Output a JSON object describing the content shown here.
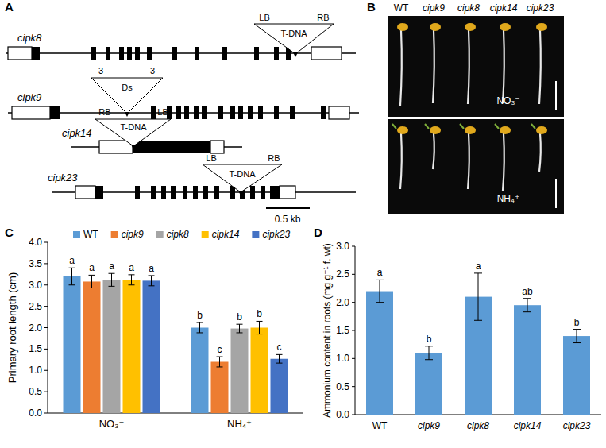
{
  "chart_data": [
    {
      "panel_label": "C",
      "type": "bar",
      "categories": [
        "NO₃⁻",
        "NH₄⁺"
      ],
      "ylabel": "Primary root length (cm)",
      "ylim": [
        0,
        4
      ],
      "yticks": [
        {
          "value": 0,
          "label": "0.0"
        },
        {
          "value": 0.5,
          "label": "0.5"
        },
        {
          "value": 1,
          "label": "1.0"
        },
        {
          "value": 1.5,
          "label": "1.5"
        },
        {
          "value": 2,
          "label": "2.0"
        },
        {
          "value": 2.5,
          "label": "2.5"
        },
        {
          "value": 3,
          "label": "3.0"
        },
        {
          "value": 3.5,
          "label": "3.5"
        },
        {
          "value": 4,
          "label": "4.0"
        }
      ],
      "legend": "top",
      "series": [
        {
          "name": "WT",
          "color": "#5b9bd5",
          "values": [
            3.2,
            2.0
          ],
          "errors": [
            0.2,
            0.12
          ],
          "letters": [
            "a",
            "b"
          ]
        },
        {
          "name": "cipk9",
          "color": "#ed7d31",
          "values": [
            3.08,
            1.2
          ],
          "errors": [
            0.15,
            0.12
          ],
          "letters": [
            "a",
            "c"
          ]
        },
        {
          "name": "cipk8",
          "color": "#a5a5a5",
          "values": [
            3.12,
            1.98
          ],
          "errors": [
            0.15,
            0.1
          ],
          "letters": [
            "a",
            "b"
          ]
        },
        {
          "name": "cipk14",
          "color": "#ffc000",
          "values": [
            3.12,
            2.0
          ],
          "errors": [
            0.12,
            0.15
          ],
          "letters": [
            "a",
            "b"
          ]
        },
        {
          "name": "cipk23",
          "color": "#4472c4",
          "values": [
            3.1,
            1.27
          ],
          "errors": [
            0.12,
            0.1
          ],
          "letters": [
            "a",
            "c"
          ]
        }
      ]
    },
    {
      "panel_label": "D",
      "type": "bar",
      "categories": [
        "WT",
        "cipk9",
        "cipk8",
        "cipk14",
        "cipk23"
      ],
      "values": [
        2.2,
        1.1,
        2.1,
        1.95,
        1.4
      ],
      "errors": [
        0.2,
        0.12,
        0.42,
        0.12,
        0.12
      ],
      "letters": [
        "a",
        "b",
        "a",
        "ab",
        "b"
      ],
      "color": "#5b9bd5",
      "ylabel": "Ammonium content in roots (mg g⁻¹ f. wt)",
      "ylim": [
        0,
        3
      ],
      "yticks": [
        {
          "value": 0,
          "label": "0.0"
        },
        {
          "value": 0.5,
          "label": "0.5"
        },
        {
          "value": 1,
          "label": "1.0"
        },
        {
          "value": 1.5,
          "label": "1.5"
        },
        {
          "value": 2,
          "label": "2.0"
        },
        {
          "value": 2.5,
          "label": "2.5"
        },
        {
          "value": 3,
          "label": "3.0"
        }
      ]
    }
  ],
  "diagram": {
    "panel_label": "A",
    "genes": [
      {
        "name": "cipk8",
        "insertion": "T-DNA",
        "ends": [
          "LB",
          "RB"
        ]
      },
      {
        "name": "cipk9",
        "insertion": "Ds",
        "ends": [
          "3",
          "3"
        ]
      },
      {
        "name": "cipk14",
        "insertion": "T-DNA",
        "ends": [
          "RB",
          "LB"
        ]
      },
      {
        "name": "cipk23",
        "insertion": "T-DNA",
        "ends": [
          "LB",
          "RB"
        ]
      }
    ],
    "scale_bar": "0.5 kb"
  },
  "photo": {
    "panel_label": "B",
    "columns": [
      "WT",
      "cipk9",
      "cipk8",
      "cipk14",
      "cipk23"
    ],
    "rows": [
      "NO₃⁻",
      "NH₄⁺"
    ]
  }
}
